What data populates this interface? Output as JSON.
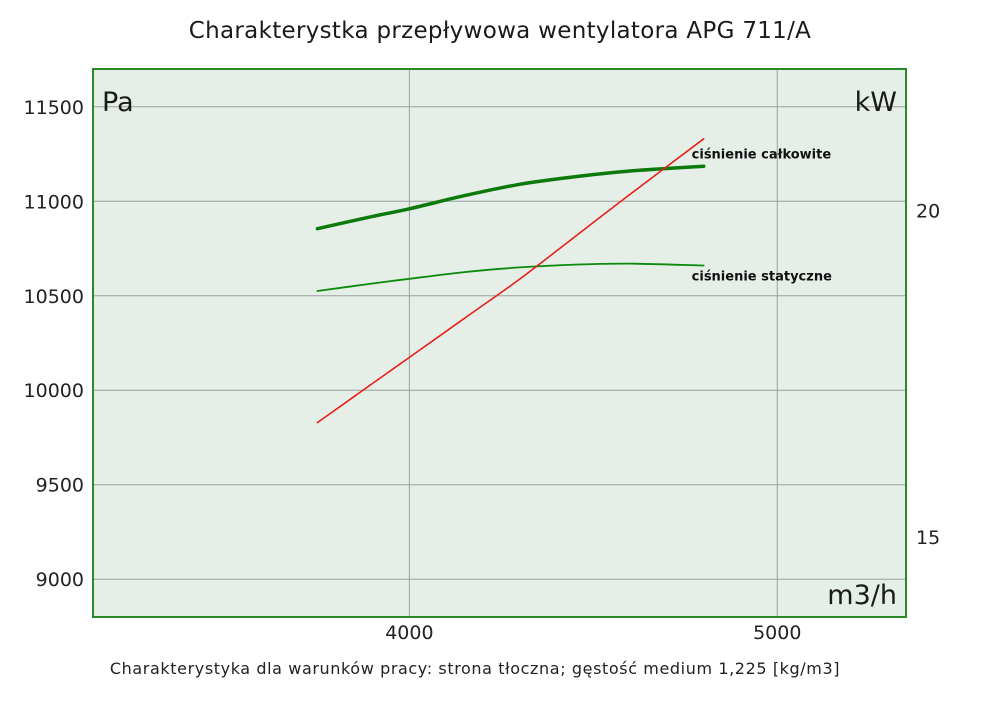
{
  "chart_data": {
    "type": "line",
    "title": "Charakterystka przepływowa wentylatora APG 711/A",
    "subtitle": "Charakterystyka dla warunków pracy: strona tłoczna; gęstość medium 1,225 [kg/m3]",
    "xlabel": "m3/h",
    "ylabel": "Pa",
    "y2label": "kW",
    "xlim": [
      3140,
      5350
    ],
    "ylim": [
      8800,
      11700
    ],
    "y2lim": [
      13.77,
      22.17
    ],
    "xticks": [
      4000,
      5000
    ],
    "yticks": [
      9000,
      9500,
      10000,
      10500,
      11000,
      11500
    ],
    "y2ticks": [
      15,
      20
    ],
    "grid": true,
    "background_color": "#e6eee8",
    "frame_color": "#2a8a2a",
    "series": [
      {
        "name": "ciśnienie całkowite",
        "axis": "left",
        "color": "#0b7a0b",
        "x": [
          3750,
          3900,
          4000,
          4150,
          4300,
          4450,
          4600,
          4800
        ],
        "y": [
          10855,
          10920,
          10960,
          11030,
          11090,
          11130,
          11160,
          11185
        ]
      },
      {
        "name": "ciśnienie statyczne",
        "axis": "left",
        "color": "#0b8a0b",
        "x": [
          3750,
          3900,
          4000,
          4150,
          4300,
          4450,
          4600,
          4800
        ],
        "y": [
          10525,
          10565,
          10590,
          10625,
          10650,
          10665,
          10670,
          10660
        ]
      },
      {
        "name": "",
        "axis": "right",
        "color": "#e8201a",
        "x": [
          3750,
          3900,
          4000,
          4150,
          4300,
          4450,
          4600,
          4800
        ],
        "y": [
          16.75,
          17.35,
          17.75,
          18.35,
          18.95,
          19.6,
          20.25,
          21.1
        ]
      }
    ]
  }
}
